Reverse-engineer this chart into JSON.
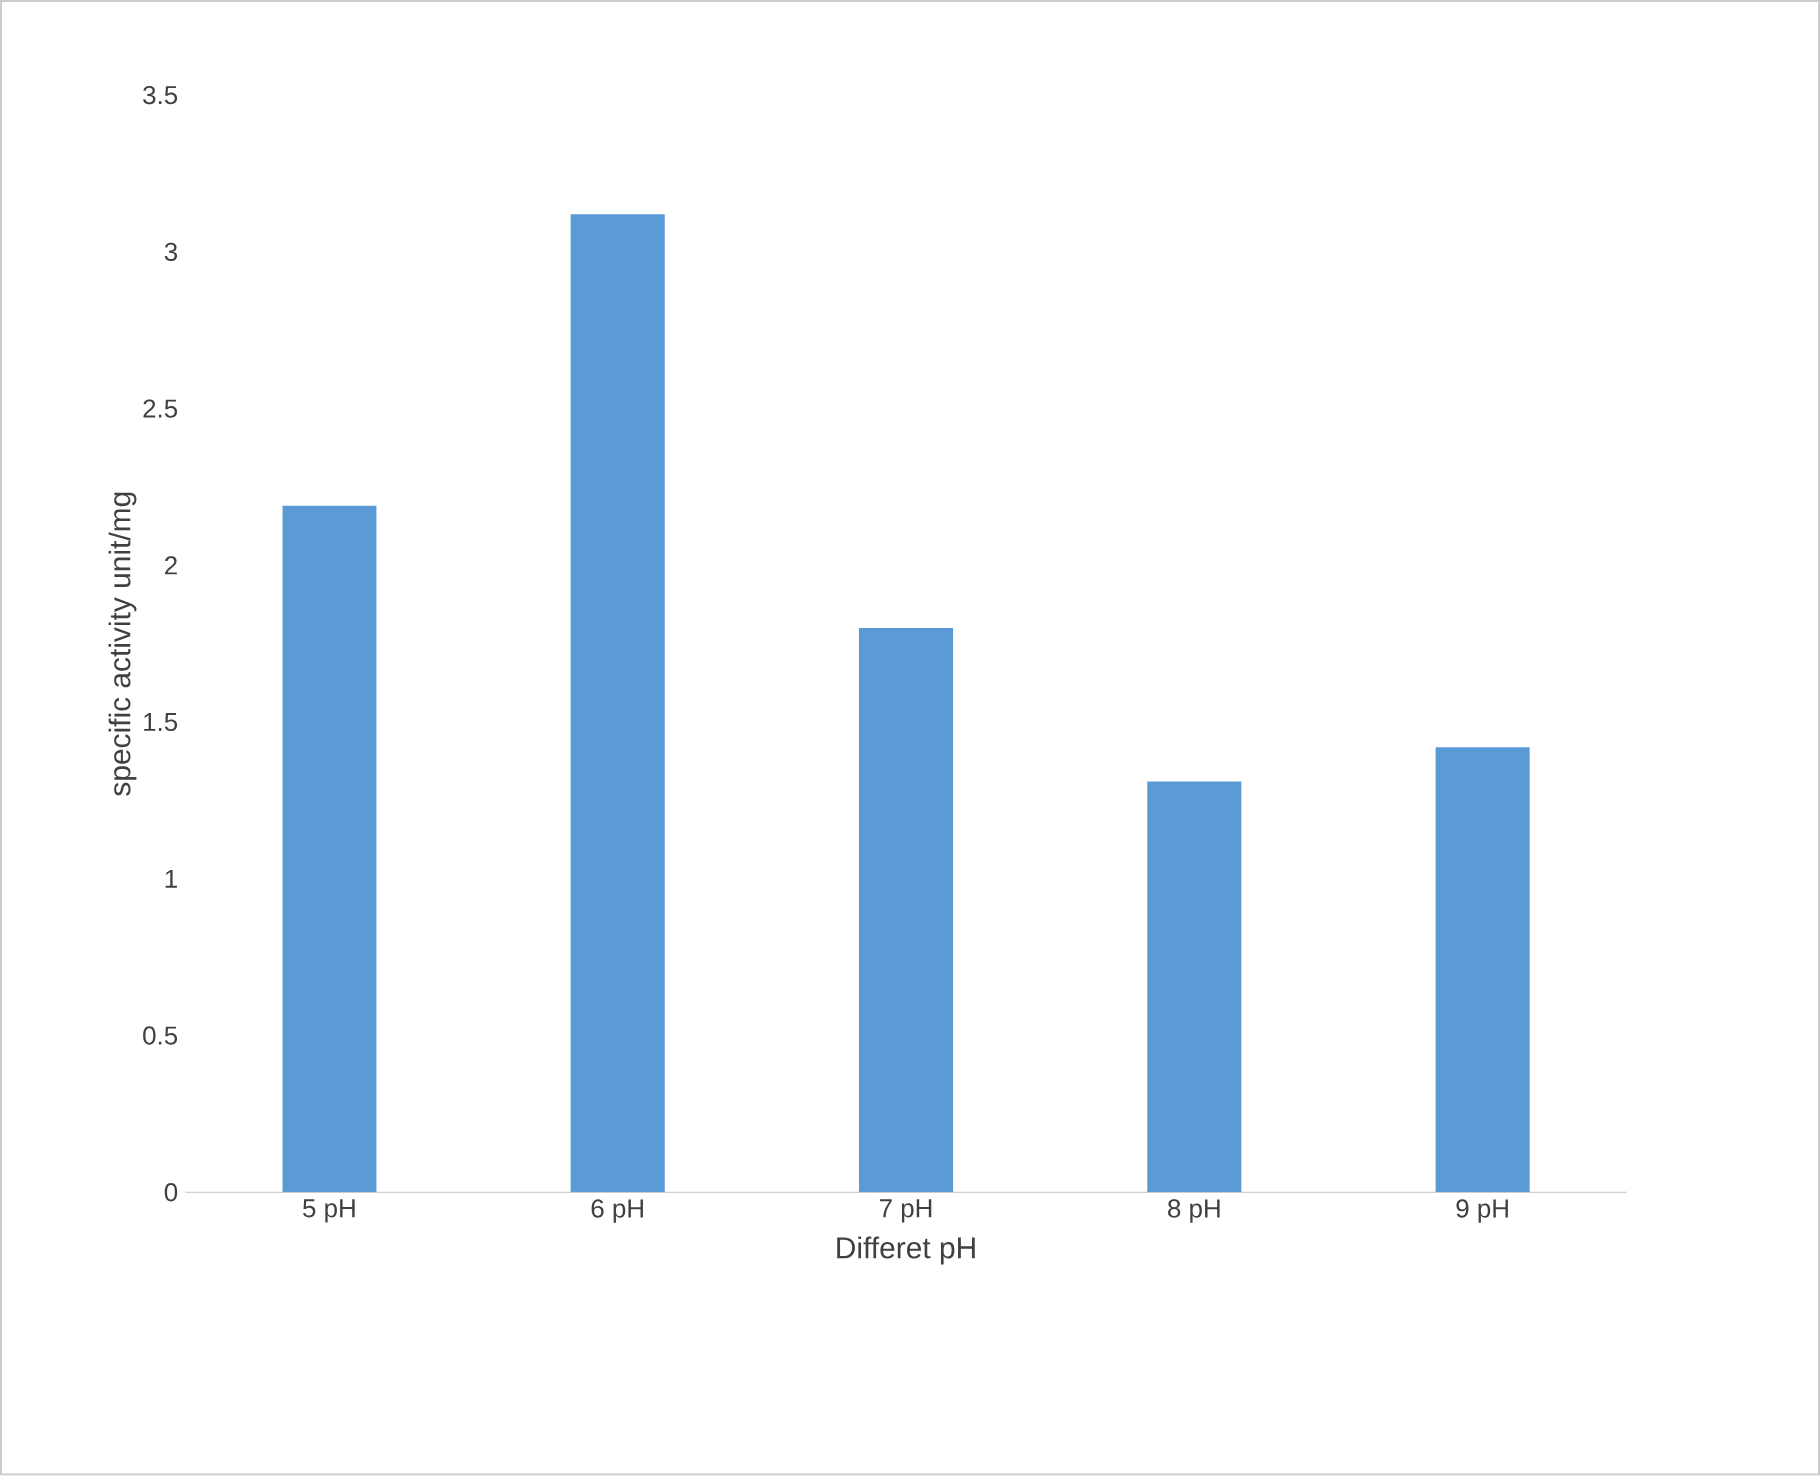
{
  "chart_data": {
    "type": "bar",
    "xlabel": "Differet pH",
    "ylabel": "specific activity unit/mg",
    "categories": [
      "5 pH",
      "6 pH",
      "7 pH",
      "8 pH",
      "9 pH"
    ],
    "values": [
      2.19,
      3.12,
      1.8,
      1.31,
      1.42
    ],
    "color": "#5b9bd5",
    "ylim": [
      0,
      3.5
    ],
    "yticks": [
      0,
      0.5,
      1,
      1.5,
      2,
      2.5,
      3,
      3.5
    ],
    "grid": false
  }
}
